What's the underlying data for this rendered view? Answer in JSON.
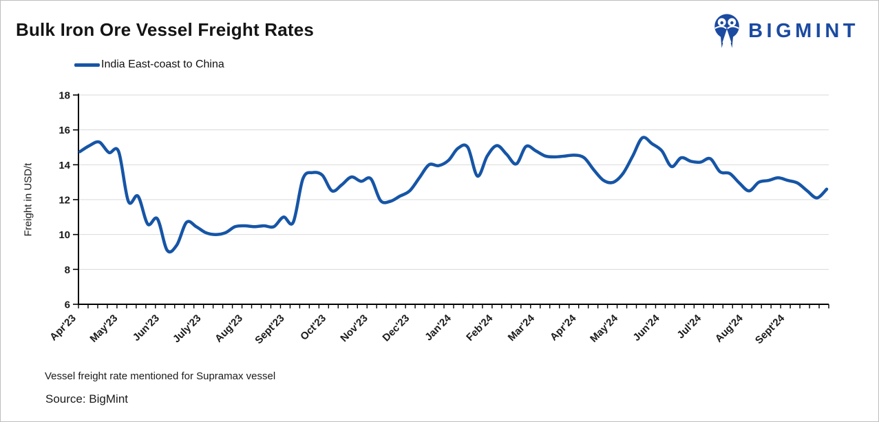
{
  "header": {
    "brand": "BIGMINT"
  },
  "legend": {
    "label": "India East-coast to China"
  },
  "footer": {
    "note": "Vessel freight rate mentioned for Supramax vessel",
    "source": "Source: BigMint"
  },
  "colors": {
    "line": "#1655A6",
    "brand": "#1B4AA1",
    "grid": "#D9D9D9",
    "axis": "#000000",
    "text": "#1A1A1A"
  },
  "chart_data": {
    "type": "line",
    "title": "Bulk Iron Ore Vessel Freight Rates",
    "xlabel": "",
    "ylabel": "Freight  in USD/t",
    "ylim": [
      6,
      18
    ],
    "ytick_step": 2,
    "yticks": [
      6,
      8,
      10,
      12,
      14,
      16,
      18
    ],
    "grid": true,
    "legend_position": "top-left",
    "x_cadence": "weekly",
    "x_tick_labels": [
      "Apr'23",
      "May'23",
      "Jun'23",
      "July'23",
      "Aug'23",
      "Sept'23",
      "Oct'23",
      "Nov'23",
      "Dec'23",
      "Jan'24",
      "Feb'24",
      "Mar'24",
      "Apr'24",
      "May'24",
      "Jun'24",
      "Jul'24",
      "Aug'24",
      "Sept'24"
    ],
    "series": [
      {
        "name": "India East-coast to China",
        "unit": "USD/t",
        "values": [
          14.75,
          15.1,
          15.3,
          14.7,
          14.75,
          11.9,
          12.2,
          10.6,
          10.9,
          9.1,
          9.4,
          10.7,
          10.45,
          10.1,
          10.0,
          10.1,
          10.45,
          10.5,
          10.45,
          10.5,
          10.45,
          11.0,
          10.7,
          13.2,
          13.55,
          13.4,
          12.5,
          12.85,
          13.3,
          13.05,
          13.2,
          11.95,
          11.9,
          12.2,
          12.5,
          13.25,
          14.0,
          13.95,
          14.25,
          14.95,
          15.0,
          13.35,
          14.5,
          15.1,
          14.6,
          14.05,
          15.05,
          14.8,
          14.5,
          14.45,
          14.5,
          14.55,
          14.4,
          13.7,
          13.1,
          13.0,
          13.5,
          14.5,
          15.55,
          15.2,
          14.8,
          13.9,
          14.4,
          14.2,
          14.15,
          14.35,
          13.6,
          13.5,
          12.95,
          12.5,
          13.0,
          13.1,
          13.25,
          13.1,
          12.95,
          12.5,
          12.1,
          12.6
        ]
      }
    ]
  }
}
